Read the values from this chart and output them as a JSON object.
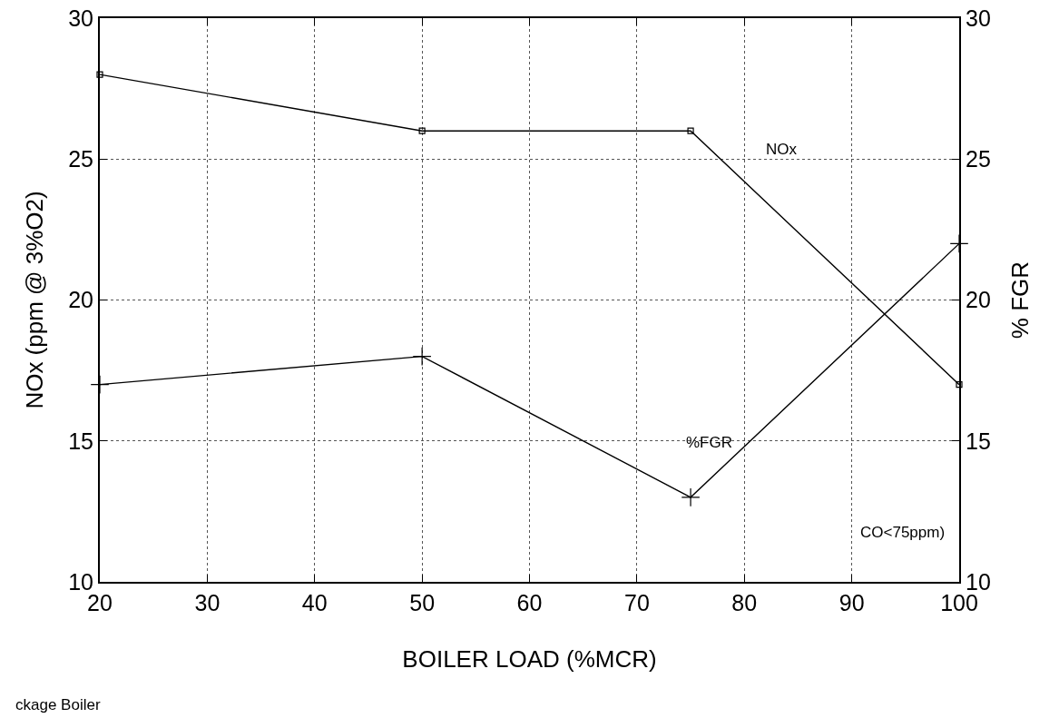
{
  "chart_data": {
    "type": "line",
    "xlabel": "BOILER LOAD (%MCR)",
    "ylabel": "NOx (ppm @ 3%O2)",
    "y2label": "% FGR",
    "x": [
      20,
      50,
      75,
      100
    ],
    "series": [
      {
        "name": "NOx",
        "color": "#000000",
        "values": [
          28,
          26,
          26,
          17
        ],
        "marker": "square"
      },
      {
        "name": "%FGR",
        "color": "#000000",
        "values": [
          17,
          18,
          13,
          22
        ],
        "marker": "cross",
        "axis": "y2"
      }
    ],
    "xlim": [
      20,
      100
    ],
    "xticks": [
      20,
      30,
      40,
      50,
      60,
      70,
      80,
      90,
      100
    ],
    "ylim": [
      10,
      30
    ],
    "yticks": [
      10,
      15,
      20,
      25,
      30
    ],
    "y2lim": [
      10,
      30
    ],
    "y2ticks": [
      10,
      15,
      20,
      25,
      30
    ],
    "grid": true,
    "legend": false,
    "line_style": "solid",
    "annotations": [
      "CO<75ppm)",
      "ckage Boiler"
    ]
  }
}
